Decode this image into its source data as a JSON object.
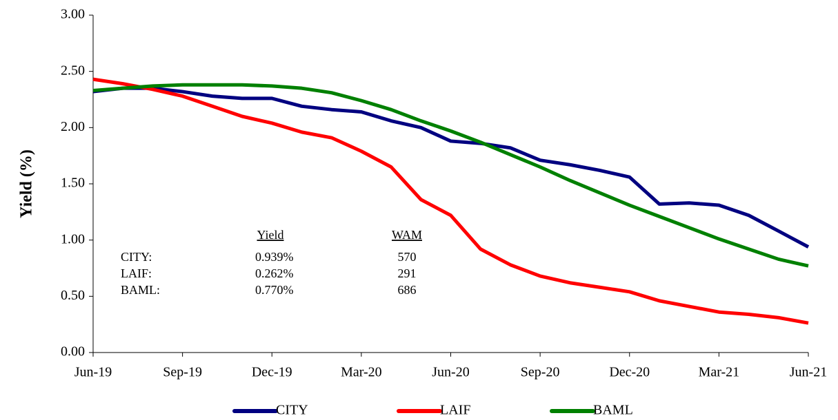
{
  "chart_data": {
    "type": "line",
    "y_label": "Yield (%)",
    "categories": [
      "Jun-19",
      null,
      null,
      "Sep-19",
      null,
      null,
      "Dec-19",
      null,
      null,
      "Mar-20",
      null,
      null,
      "Jun-20",
      null,
      null,
      "Sep-20",
      null,
      null,
      "Dec-20",
      null,
      null,
      "Mar-21",
      null,
      null,
      "Jun-21"
    ],
    "series": [
      {
        "name": "CITY",
        "color": "#000080",
        "values": [
          2.32,
          2.35,
          2.35,
          2.32,
          2.28,
          2.26,
          2.26,
          2.19,
          2.16,
          2.14,
          2.06,
          2.0,
          1.88,
          1.86,
          1.82,
          1.71,
          1.67,
          1.62,
          1.56,
          1.32,
          1.33,
          1.31,
          1.22,
          1.08,
          0.939
        ]
      },
      {
        "name": "LAIF",
        "color": "#ff0000",
        "values": [
          2.43,
          2.39,
          2.34,
          2.28,
          2.19,
          2.1,
          2.04,
          1.96,
          1.91,
          1.79,
          1.65,
          1.36,
          1.22,
          0.92,
          0.78,
          0.68,
          0.62,
          0.58,
          0.54,
          0.46,
          0.41,
          0.36,
          0.34,
          0.31,
          0.262
        ]
      },
      {
        "name": "BAML",
        "color": "#008000",
        "values": [
          2.33,
          2.35,
          2.37,
          2.38,
          2.38,
          2.38,
          2.37,
          2.35,
          2.31,
          2.24,
          2.16,
          2.06,
          1.97,
          1.87,
          1.76,
          1.65,
          1.53,
          1.42,
          1.31,
          1.21,
          1.11,
          1.01,
          0.92,
          0.83,
          0.77
        ]
      }
    ],
    "ylim": [
      0,
      3
    ],
    "yticks": [
      {
        "value": 0,
        "label": "0.00"
      },
      {
        "value": 0.5,
        "label": "0.50"
      },
      {
        "value": 1,
        "label": "1.00"
      },
      {
        "value": 1.5,
        "label": "1.50"
      },
      {
        "value": 2,
        "label": "2.00"
      },
      {
        "value": 2.5,
        "label": "2.50"
      },
      {
        "value": 3,
        "label": "3.00"
      }
    ],
    "grid": false,
    "legend": "bottom",
    "table": {
      "headers": [
        "Yield",
        "WAM"
      ],
      "rows": [
        [
          "CITY:",
          "0.939%",
          "570"
        ],
        [
          "LAIF:",
          "0.262%",
          "291"
        ],
        [
          "BAML:",
          "0.770%",
          "686"
        ]
      ]
    }
  }
}
